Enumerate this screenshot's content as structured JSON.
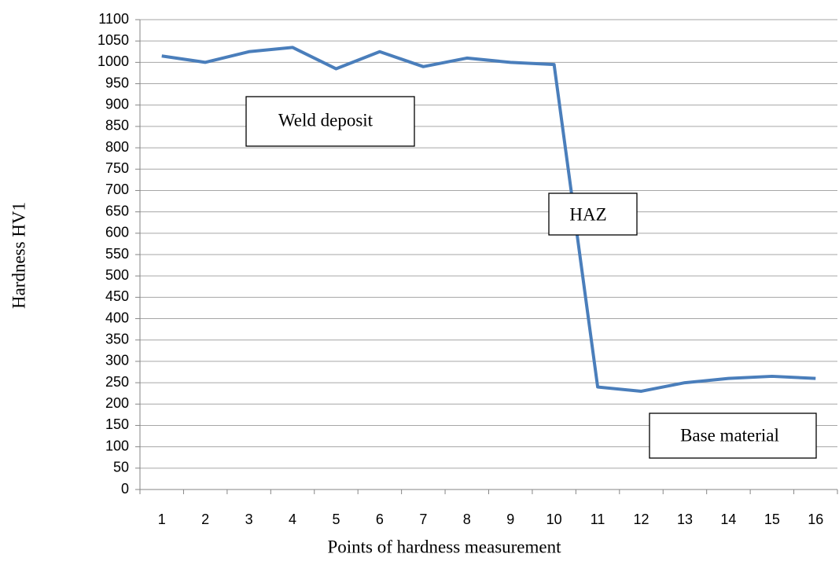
{
  "chart_data": {
    "type": "line",
    "x_label": "Points of hardness measurement",
    "y_label": "Hardness HV1",
    "categories": [
      "1",
      "2",
      "3",
      "4",
      "5",
      "6",
      "7",
      "8",
      "9",
      "10",
      "11",
      "12",
      "13",
      "14",
      "15",
      "16"
    ],
    "series": [
      {
        "color": "#4a7ebb",
        "values": [
          1015,
          1000,
          1025,
          1035,
          985,
          1025,
          990,
          1010,
          1000,
          995,
          240,
          230,
          250,
          260,
          265,
          260
        ]
      }
    ],
    "ylim": [
      0,
      1100
    ],
    "yticks": [
      0,
      50,
      100,
      150,
      200,
      250,
      300,
      350,
      400,
      450,
      500,
      550,
      600,
      650,
      700,
      750,
      800,
      850,
      900,
      950,
      1000,
      1050,
      1100
    ],
    "grid": true,
    "annotations": [
      "Weld deposit",
      "HAZ",
      "Base material"
    ]
  }
}
